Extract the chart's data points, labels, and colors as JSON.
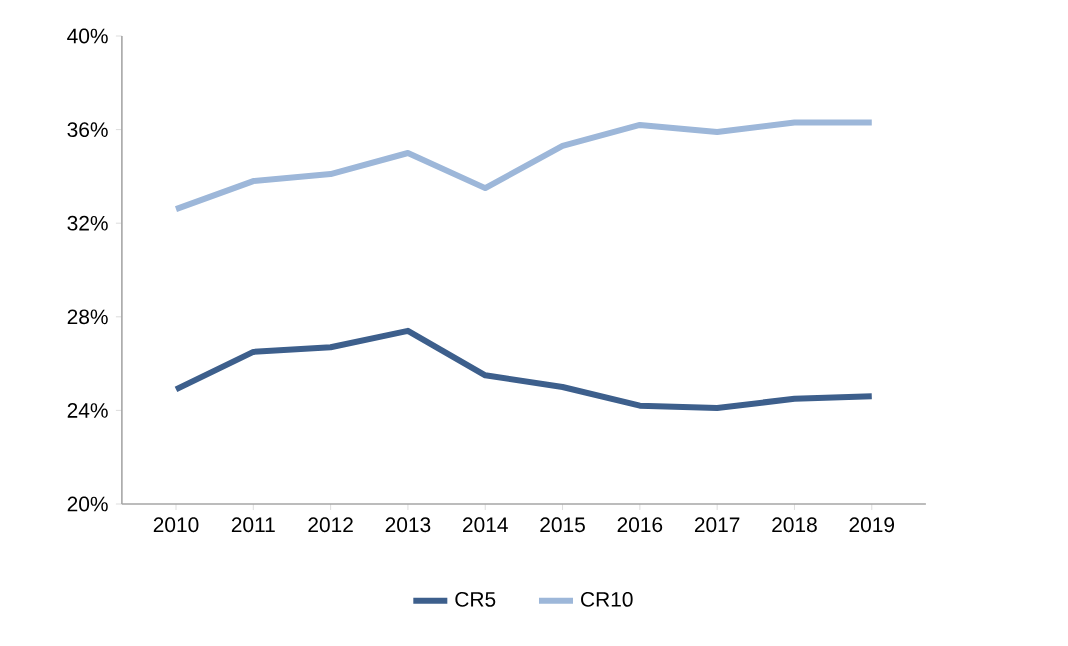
{
  "chart_data": {
    "type": "line",
    "categories": [
      "2010",
      "2011",
      "2012",
      "2013",
      "2014",
      "2015",
      "2016",
      "2017",
      "2018",
      "2019"
    ],
    "series": [
      {
        "name": "CR5",
        "color": "#3d5f8c",
        "values": [
          24.9,
          26.5,
          26.7,
          27.4,
          25.5,
          25.0,
          24.2,
          24.1,
          24.5,
          24.6
        ]
      },
      {
        "name": "CR10",
        "color": "#9db7d9",
        "values": [
          32.6,
          33.8,
          34.1,
          35.0,
          33.5,
          35.3,
          36.2,
          35.9,
          36.3,
          36.3
        ]
      }
    ],
    "ylim": [
      20,
      40
    ],
    "yticks": [
      {
        "value": 20,
        "label": "20%"
      },
      {
        "value": 24,
        "label": "24%"
      },
      {
        "value": 28,
        "label": "28%"
      },
      {
        "value": 32,
        "label": "32%"
      },
      {
        "value": 36,
        "label": "36%"
      },
      {
        "value": 40,
        "label": "40%"
      }
    ],
    "grid": false,
    "legend": "bottom",
    "marker": "none"
  }
}
